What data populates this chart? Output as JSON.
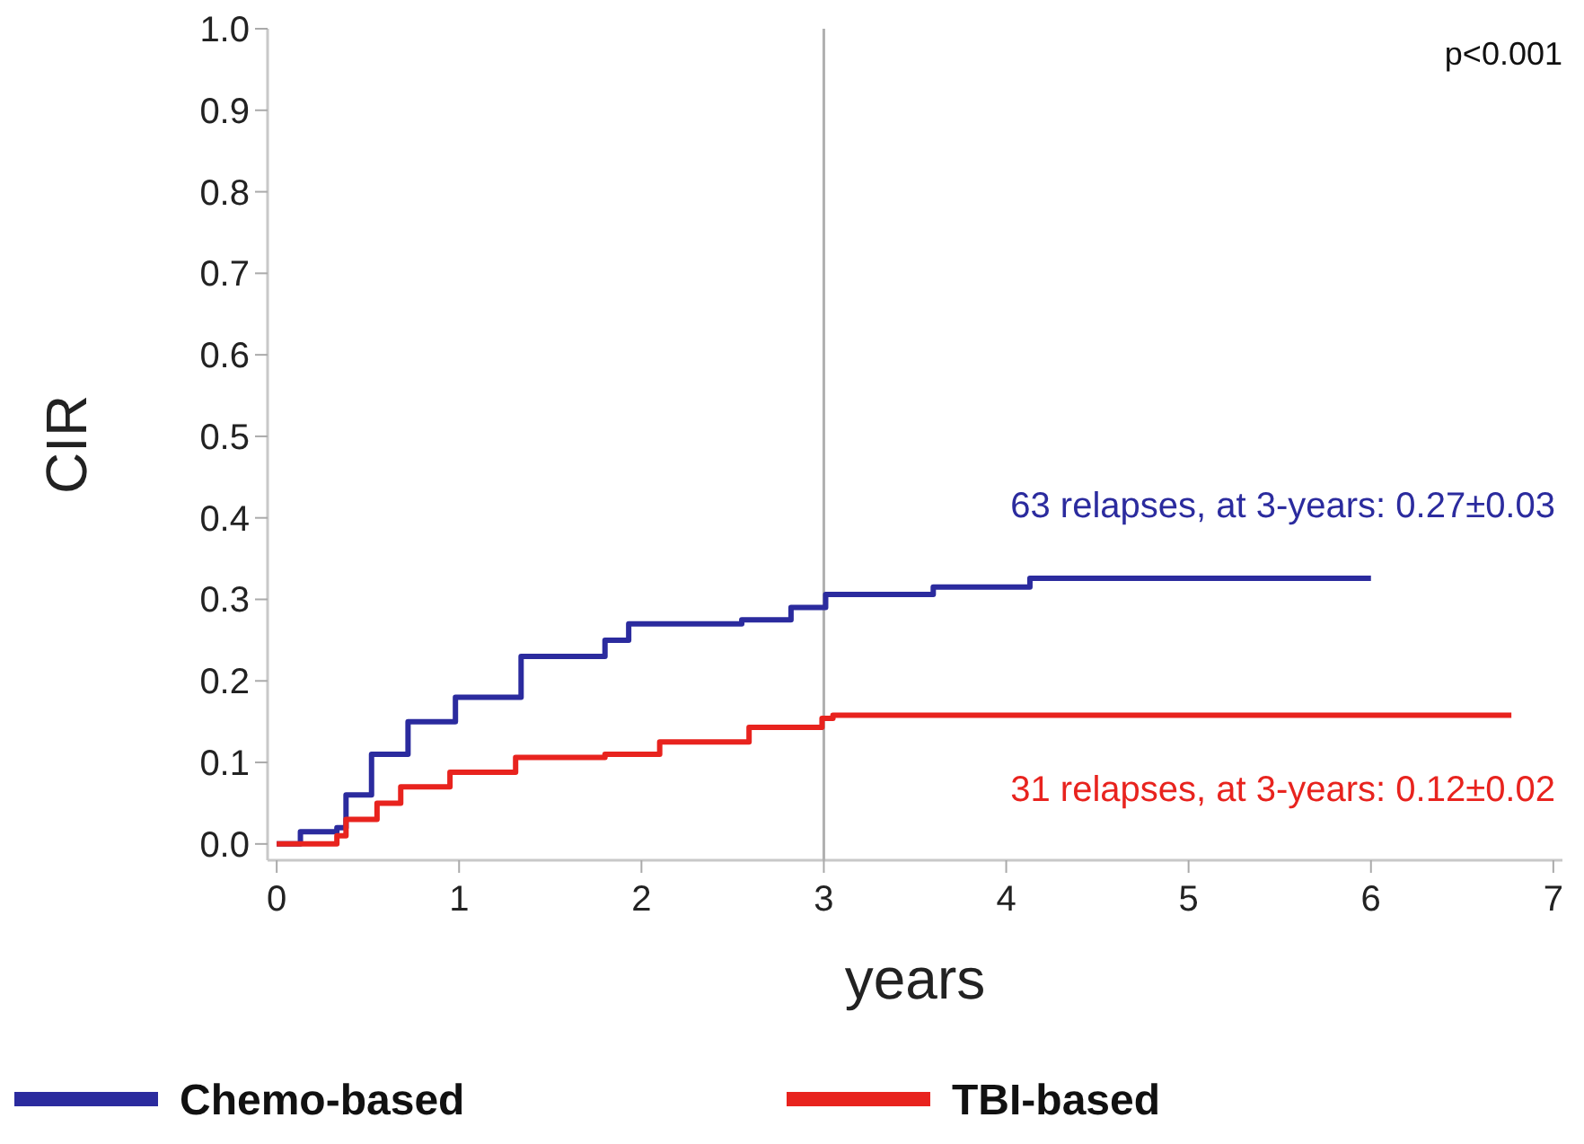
{
  "chart_data": {
    "type": "step",
    "xlabel": "years",
    "ylabel": "CIR",
    "xlim": [
      -0.05,
      7.05
    ],
    "ylim": [
      -0.02,
      1.0
    ],
    "xticks": [
      0,
      1,
      2,
      3,
      4,
      5,
      6,
      7
    ],
    "yticks": [
      {
        "value": 0,
        "label": "0.0"
      },
      0.1,
      0.2,
      0.3,
      0.4,
      0.5,
      0.6,
      0.7,
      0.8,
      0.9,
      {
        "value": 1,
        "label": "1.0"
      }
    ],
    "series": [
      {
        "name": "Chemo-based",
        "color": "#2b2b9e",
        "x": [
          0,
          0.13,
          0.33,
          0.38,
          0.52,
          0.72,
          0.98,
          1.34,
          1.8,
          1.93,
          2.55,
          2.82,
          3.01,
          3.6,
          4.13,
          6.0
        ],
        "values": [
          0,
          0.015,
          0.02,
          0.06,
          0.11,
          0.15,
          0.18,
          0.23,
          0.25,
          0.27,
          0.275,
          0.29,
          0.306,
          0.315,
          0.326,
          0.326
        ]
      },
      {
        "name": "TBI-based",
        "color": "#e8231e",
        "x": [
          0,
          0.33,
          0.38,
          0.55,
          0.68,
          0.95,
          1.31,
          1.8,
          2.1,
          2.59,
          2.99,
          3.05,
          6.77
        ],
        "values": [
          0,
          0.01,
          0.03,
          0.05,
          0.07,
          0.088,
          0.106,
          0.11,
          0.125,
          0.143,
          0.154,
          0.158,
          0.158
        ]
      }
    ],
    "ref_lines": [
      {
        "axis": "x",
        "value": 3,
        "color": "#b0b0b0"
      }
    ],
    "annotations": [
      "p<0.001",
      "63 relapses, at 3-years: 0.27±0.03",
      "31 relapses, at 3-years: 0.12±0.02"
    ],
    "legend": "bottom",
    "grid": false
  }
}
